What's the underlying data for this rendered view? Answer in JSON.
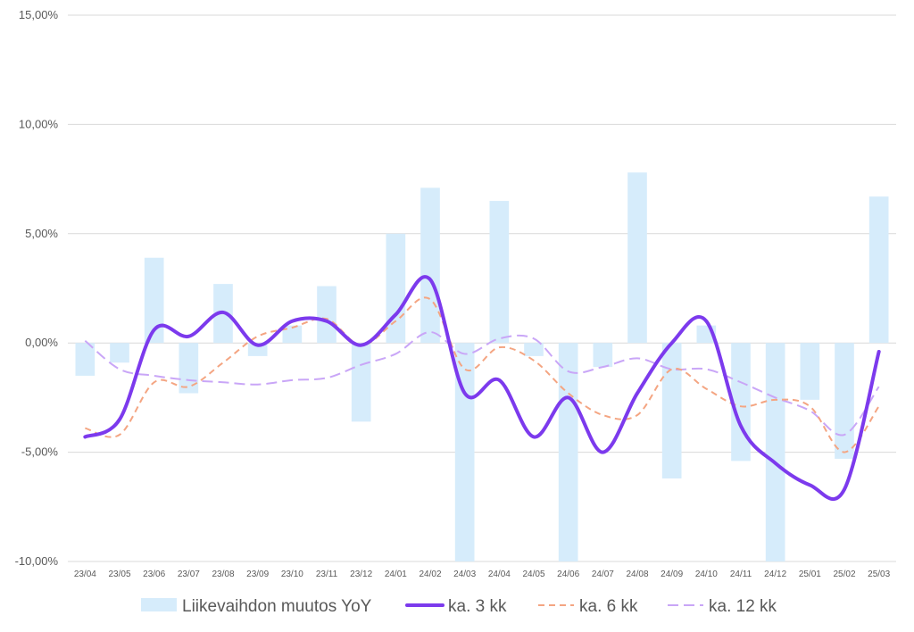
{
  "chart_data": {
    "type": "bar",
    "categories": [
      "23/04",
      "23/05",
      "23/06",
      "23/07",
      "23/08",
      "23/09",
      "23/10",
      "23/11",
      "23/12",
      "24/01",
      "24/02",
      "24/03",
      "24/04",
      "24/05",
      "24/06",
      "24/07",
      "24/08",
      "24/09",
      "24/10",
      "24/11",
      "24/12",
      "25/01",
      "25/02",
      "25/03"
    ],
    "ylim": [
      -10,
      15
    ],
    "yticks": [
      {
        "value": 15,
        "label": "15,00%"
      },
      {
        "value": 10,
        "label": "10,00%"
      },
      {
        "value": 5,
        "label": "5,00%"
      },
      {
        "value": 0,
        "label": "0,00%"
      },
      {
        "value": -5,
        "label": "-5,00%"
      },
      {
        "value": -10,
        "label": "-10,00%"
      }
    ],
    "grid": true,
    "legend_position": "bottom",
    "series": [
      {
        "name": "Liikevaihdon muutos YoY",
        "type": "bar",
        "color": "#d6ecfb",
        "values": [
          -1.5,
          -0.9,
          3.9,
          -2.3,
          2.7,
          -0.6,
          0.8,
          2.6,
          -3.6,
          5.0,
          7.1,
          -10.0,
          6.5,
          -0.6,
          -10.0,
          -1.1,
          7.8,
          -6.2,
          0.8,
          -5.4,
          -10.0,
          -2.6,
          -5.3,
          6.7
        ]
      },
      {
        "name": "ka. 3 kk",
        "type": "line",
        "color": "#7c3aed",
        "style": "solid",
        "values": [
          -4.3,
          -3.5,
          0.6,
          0.3,
          1.4,
          -0.1,
          1.0,
          1.0,
          -0.1,
          1.3,
          2.9,
          -2.3,
          -1.7,
          -4.3,
          -2.5,
          -5.0,
          -2.3,
          0.0,
          1.0,
          -3.8,
          -5.5,
          -6.5,
          -6.7,
          -0.4
        ]
      },
      {
        "name": "ka. 6 kk",
        "type": "line",
        "color": "#f4a582",
        "style": "dashed",
        "values": [
          -3.9,
          -4.2,
          -1.8,
          -2.0,
          -0.9,
          0.3,
          0.7,
          1.1,
          -0.1,
          1.0,
          2.0,
          -1.2,
          -0.2,
          -0.8,
          -2.3,
          -3.3,
          -3.3,
          -1.2,
          -2.1,
          -2.9,
          -2.6,
          -2.9,
          -5.0,
          -2.9
        ]
      },
      {
        "name": "ka. 12 kk",
        "type": "line",
        "color": "#c9a6f7",
        "style": "dashed",
        "values": [
          0.1,
          -1.2,
          -1.5,
          -1.7,
          -1.8,
          -1.9,
          -1.7,
          -1.6,
          -1.0,
          -0.5,
          0.5,
          -0.5,
          0.2,
          0.2,
          -1.3,
          -1.1,
          -0.7,
          -1.2,
          -1.2,
          -1.8,
          -2.5,
          -3.1,
          -4.2,
          -2.0
        ]
      }
    ]
  }
}
